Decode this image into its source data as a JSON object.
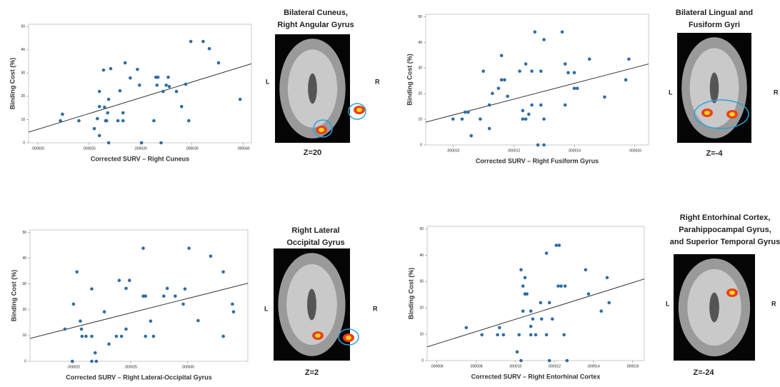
{
  "chart_data": [
    {
      "type": "scatter",
      "xlabel": "Corrected SURV – Right Cuneus",
      "ylabel": "Binding Cost (%)",
      "color": "#2e6da4",
      "x": [
        2.22e-05,
        2.24e-05,
        2.4e-05,
        2.55e-05,
        2.58e-05,
        2.6e-05,
        2.6e-05,
        2.6e-05,
        2.64e-05,
        2.65e-05,
        2.66e-05,
        2.67e-05,
        2.68e-05,
        2.69e-05,
        2.69e-05,
        2.71e-05,
        2.78e-05,
        2.8e-05,
        2.83e-05,
        2.83e-05,
        2.85e-05,
        2.9e-05,
        2.97e-05,
        2.99e-05,
        3.01e-05,
        3.13e-05,
        3.15e-05,
        3.17e-05,
        3.16e-05,
        3.2e-05,
        3.22e-05,
        3.25e-05,
        3.27e-05,
        3.28e-05,
        3.35e-05,
        3.4e-05,
        3.44e-05,
        3.47e-05,
        3.49e-05,
        3.61e-05,
        3.67e-05,
        3.76e-05,
        3.97e-05
      ],
      "values": [
        9.5,
        12.3,
        9.5,
        6.1,
        10.4,
        15.6,
        22.1,
        3.1,
        31.3,
        15.3,
        9.5,
        9.5,
        12.9,
        18.7,
        0,
        31.9,
        9.5,
        22.4,
        9.5,
        12.9,
        34.4,
        27.9,
        31.6,
        24.8,
        0,
        9.5,
        28.2,
        28.2,
        24.8,
        0,
        22.1,
        24.8,
        28.2,
        24.2,
        22.1,
        15.6,
        25.2,
        9.5,
        43.6,
        43.6,
        40.5,
        34.4,
        18.7
      ],
      "trendline": {
        "x": [
          1.91e-05,
          4.08e-05
        ],
        "values": [
          4.6,
          34.0
        ]
      },
      "xlim": [
        1.91e-05,
        4.08e-05
      ],
      "ylim": [
        0,
        51
      ],
      "xticks": [
        {
          "value": 2e-05,
          "label": ".000020"
        },
        {
          "value": 2.5e-05,
          "label": ".000025"
        },
        {
          "value": 3e-05,
          "label": ".000030"
        },
        {
          "value": 3.5e-05,
          "label": ".000035"
        },
        {
          "value": 4e-05,
          "label": ".000040"
        }
      ],
      "yticks": [
        0,
        10,
        20,
        30,
        40,
        50
      ]
    },
    {
      "type": "scatter",
      "xlabel": "Corrected SURV – Right Fusiform Gyrus",
      "ylabel": "Binding Cost (%)",
      "color": "#2e6da4",
      "x": [
        1e-05,
        1.03e-05,
        1.04e-05,
        1.05e-05,
        1.06e-05,
        1.09e-05,
        1.1e-05,
        1.12e-05,
        1.12e-05,
        1.13e-05,
        1.15e-05,
        1.16e-05,
        1.16e-05,
        1.17e-05,
        1.18e-05,
        1.22e-05,
        1.23e-05,
        1.23e-05,
        1.24e-05,
        1.24e-05,
        1.25e-05,
        1.26e-05,
        1.26e-05,
        1.27e-05,
        1.28e-05,
        1.29e-05,
        1.29e-05,
        1.3e-05,
        1.3e-05,
        1.3e-05,
        1.36e-05,
        1.37e-05,
        1.37e-05,
        1.38e-05,
        1.4e-05,
        1.4e-05,
        1.41e-05,
        1.45e-05,
        1.5e-05,
        1.57e-05,
        1.58e-05
      ],
      "values": [
        10.1,
        10.1,
        12.8,
        12.8,
        3.6,
        10.1,
        28.8,
        6.4,
        15.6,
        20.1,
        22.1,
        25.4,
        34.9,
        25.4,
        19.0,
        28.8,
        13.4,
        10.1,
        31.6,
        10.1,
        12.0,
        15.6,
        28.8,
        44.1,
        0,
        28.8,
        15.6,
        41.1,
        0,
        10.1,
        44.1,
        15.6,
        31.6,
        28.2,
        22.1,
        28.2,
        22.1,
        33.5,
        18.7,
        25.4,
        33.5
      ],
      "trendline": {
        "x": [
          9.1e-06,
          1.645e-05
        ],
        "values": [
          8.9,
          31.6
        ]
      },
      "xlim": [
        9.1e-06,
        1.645e-05
      ],
      "ylim": [
        0,
        51
      ],
      "xticks": [
        {
          "value": 1e-05,
          "label": ".000010"
        },
        {
          "value": 1.2e-05,
          "label": ".000012"
        },
        {
          "value": 1.4e-05,
          "label": ".000014"
        },
        {
          "value": 1.6e-05,
          "label": ".000016"
        }
      ],
      "yticks": [
        0,
        10,
        20,
        30,
        40,
        50
      ]
    },
    {
      "type": "scatter",
      "xlabel": "Corrected SURV – Right Lateral-Occipital Gyrus",
      "ylabel": "Binding Cost (%)",
      "color": "#2e6da4",
      "x": [
        1.925e-05,
        2e-05,
        1.99e-05,
        2.03e-05,
        2.06e-05,
        2.07e-05,
        2.075e-05,
        2.11e-05,
        2.16e-05,
        2.16e-05,
        2.16e-05,
        2.19e-05,
        2.2e-05,
        2.27e-05,
        2.31e-05,
        2.375e-05,
        2.4e-05,
        2.42e-05,
        2.46e-05,
        2.46e-05,
        2.49e-05,
        2.61e-05,
        2.61e-05,
        2.63e-05,
        2.63e-05,
        2.675e-05,
        2.7e-05,
        2.79e-05,
        2.82e-05,
        2.89e-05,
        2.96e-05,
        2.975e-05,
        3.01e-05,
        3.09e-05,
        3.2e-05,
        3.31e-05,
        3.31e-05,
        3.39e-05,
        3.4e-05
      ],
      "values": [
        12.5,
        22.2,
        0,
        34.7,
        15.6,
        12.5,
        9.7,
        9.7,
        0,
        9.7,
        28.1,
        3.3,
        0,
        19.2,
        6.7,
        9.7,
        31.4,
        9.7,
        28.3,
        12.5,
        31.4,
        43.9,
        25.3,
        25.3,
        9.7,
        15.6,
        9.7,
        25.3,
        28.3,
        25.3,
        22.2,
        28.1,
        43.9,
        15.8,
        40.8,
        34.7,
        9.7,
        22.2,
        19.2
      ],
      "trendline": {
        "x": [
          1.62e-05,
          3.525e-05
        ],
        "values": [
          8.9,
          30.3
        ]
      },
      "xlim": [
        1.62e-05,
        3.525e-05
      ],
      "ylim": [
        0,
        51
      ],
      "xticks": [
        {
          "value": 2e-05,
          "label": ".000020"
        },
        {
          "value": 2.5e-05,
          "label": ".000025"
        },
        {
          "value": 3e-05,
          "label": ".000030"
        }
      ],
      "yticks": [
        0,
        10,
        20,
        30,
        40,
        50
      ]
    },
    {
      "type": "scatter",
      "xlabel": "Corrected SURV – Right Entorhinal Cortex",
      "ylabel": "Binding Cost (%)",
      "color": "#2e6da4",
      "x": [
        7.5e-06,
        8.3e-06,
        9.1e-06,
        9.2e-06,
        9.4e-06,
        1.01e-05,
        1.02e-05,
        1.03e-05,
        1.03e-05,
        1.04e-05,
        1.04e-05,
        1.05e-05,
        1.05e-05,
        1.06e-05,
        1.08e-05,
        1.08e-05,
        1.08e-05,
        1.09e-05,
        1.105e-05,
        1.13e-05,
        1.135e-05,
        1.16e-05,
        1.16e-05,
        1.175e-05,
        1.175e-05,
        1.19e-05,
        1.21e-05,
        1.22e-05,
        1.225e-05,
        1.235e-05,
        1.25e-05,
        1.255e-05,
        1.265e-05,
        1.36e-05,
        1.375e-05,
        1.44e-05,
        1.47e-05,
        1.48e-05
      ],
      "values": [
        12.5,
        9.8,
        9.8,
        12.5,
        9.8,
        3.3,
        9.8,
        0,
        34.5,
        18.8,
        28.3,
        31.5,
        25.3,
        25.3,
        9.8,
        18.8,
        13.0,
        15.8,
        9.8,
        22.0,
        15.8,
        9.8,
        40.8,
        22.0,
        0,
        15.8,
        43.8,
        28.3,
        43.8,
        28.3,
        9.8,
        28.3,
        0,
        34.5,
        25.3,
        18.8,
        31.5,
        22.0
      ],
      "trendline": {
        "x": [
          5.5e-06,
          1.66e-05
        ],
        "values": [
          5.2,
          31.0
        ]
      },
      "xlim": [
        5.5e-06,
        1.66e-05
      ],
      "ylim": [
        0,
        51
      ],
      "xticks": [
        {
          "value": 6e-06,
          "label": ".000006"
        },
        {
          "value": 8e-06,
          "label": ".000008"
        },
        {
          "value": 1e-05,
          "label": ".000010"
        },
        {
          "value": 1.2e-05,
          "label": ".000012"
        },
        {
          "value": 1.4e-05,
          "label": ".000014"
        },
        {
          "value": 1.6e-05,
          "label": ".000016"
        }
      ],
      "yticks": [
        0,
        10,
        20,
        30,
        40,
        50
      ]
    }
  ],
  "images": [
    {
      "title_lines": [
        "Bilateral Cuneus,",
        "Right Angular Gyrus"
      ],
      "left": "L",
      "right": "R",
      "slice": "Z=20"
    },
    {
      "title_lines": [
        "Bilateral  Lingual and",
        "Fusiform Gyri"
      ],
      "left": "L",
      "right": "R",
      "slice": "Z=-4"
    },
    {
      "title_lines": [
        "Right Lateral",
        "Occipital Gyrus"
      ],
      "left": "L",
      "right": "R",
      "slice": "Z=2"
    },
    {
      "title_lines": [
        "Right Entorhinal Cortex,",
        "Parahippocampal Gyrus,",
        "and Superior Temporal Gyrus"
      ],
      "left": "L",
      "right": "R",
      "slice": "Z=-24"
    }
  ]
}
